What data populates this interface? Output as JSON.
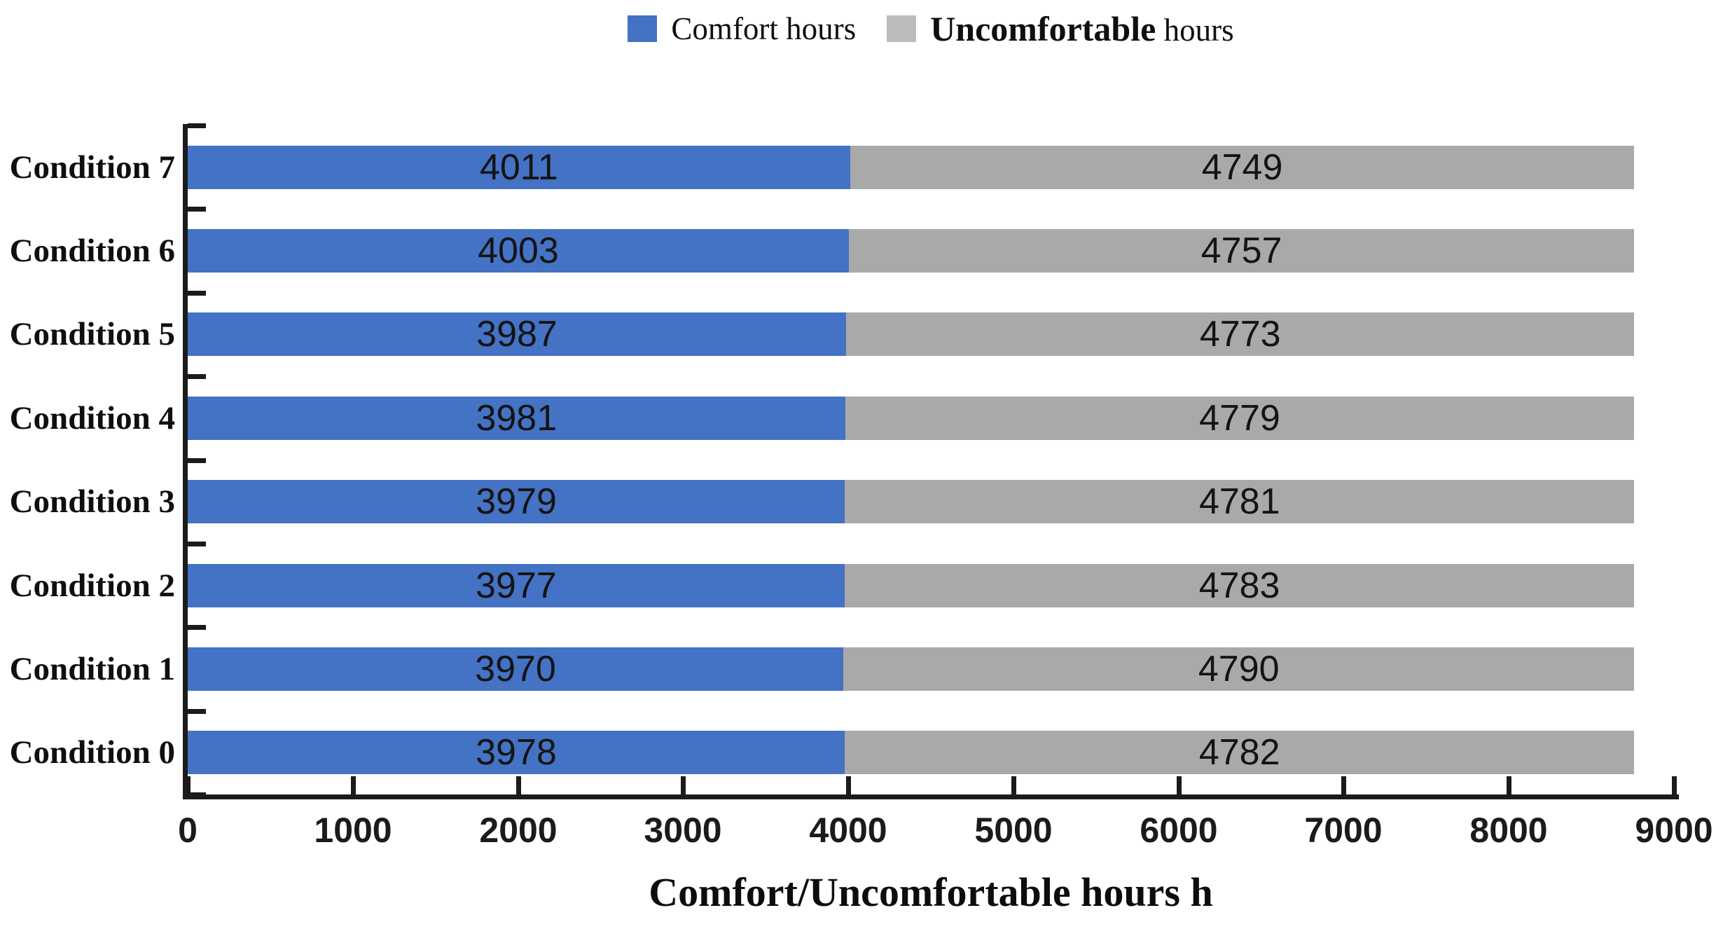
{
  "legend": {
    "items": [
      {
        "swatch_color": "#4472c4",
        "parts": [
          {
            "text": "Comfort hours",
            "bold": false
          }
        ]
      },
      {
        "swatch_color": "#bdbcbc",
        "parts": [
          {
            "text": "Uncomfortable",
            "bold": true
          },
          {
            "text": " hours",
            "bold": false
          }
        ]
      }
    ]
  },
  "chart_data": {
    "type": "bar",
    "orientation": "horizontal",
    "stacked": true,
    "categories": [
      "Condition 7",
      "Condition 6",
      "Condition 5",
      "Condition 4",
      "Condition 3",
      "Condition 2",
      "Condition 1",
      "Condition 0"
    ],
    "series": [
      {
        "name": "Comfort hours",
        "color": "#4472c4",
        "values": [
          4011,
          4003,
          3987,
          3981,
          3979,
          3977,
          3970,
          3978
        ]
      },
      {
        "name": "Uncomfortable hours",
        "color": "#a9a9a9",
        "values": [
          4749,
          4757,
          4773,
          4779,
          4781,
          4783,
          4790,
          4782
        ]
      }
    ],
    "xlabel": "Comfort/Uncomfortable hours h",
    "xlim": [
      0,
      9000
    ],
    "xticks": [
      0,
      1000,
      2000,
      3000,
      4000,
      5000,
      6000,
      7000,
      8000,
      9000
    ],
    "legend_position": "top",
    "grid": false,
    "bar_total": 8760
  }
}
